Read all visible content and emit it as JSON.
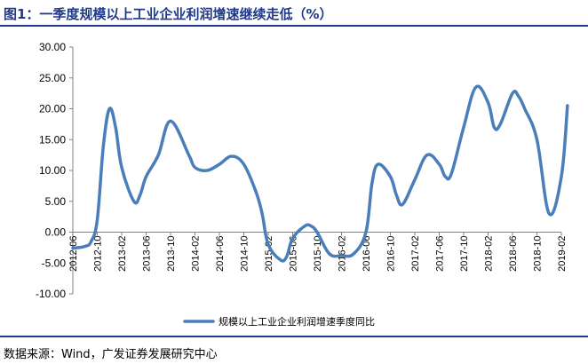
{
  "header": {
    "title": "图1：一季度规模以上工业企业利润增速继续走低（%）"
  },
  "footer": {
    "source": "数据来源：Wind，广发证券发展研究中心"
  },
  "chart_data": {
    "type": "line",
    "title": "图1：一季度规模以上工业企业利润增速继续走低（%）",
    "xlabel": "",
    "ylabel": "",
    "ylim": [
      -10,
      30
    ],
    "yticks": [
      "30.00",
      "25.00",
      "20.00",
      "15.00",
      "10.00",
      "5.00",
      "0.00",
      "-5.00",
      "-10.00"
    ],
    "categories": [
      "2012-06",
      "2012-10",
      "2013-02",
      "2013-06",
      "2013-10",
      "2014-02",
      "2014-06",
      "2014-10",
      "2015-02",
      "2015-06",
      "2015-10",
      "2016-02",
      "2016-06",
      "2016-10",
      "2017-02",
      "2017-06",
      "2017-10",
      "2018-02",
      "2018-06",
      "2018-10",
      "2019-02"
    ],
    "grid": false,
    "legend_position": "bottom",
    "series": [
      {
        "name": "规模以上工业企业利润增速季度同比",
        "color": "#4a7ebb",
        "x": [
          0,
          0.5,
          0.75,
          1.0,
          1.25,
          1.5,
          1.75,
          2.0,
          2.5,
          2.75,
          3.0,
          3.5,
          4.0,
          4.75,
          5.0,
          5.5,
          6.0,
          6.5,
          7.0,
          7.5,
          7.75,
          8.0,
          8.5,
          8.75,
          9.0,
          9.5,
          9.75,
          10.0,
          10.5,
          11.0,
          11.5,
          12.0,
          12.25,
          12.5,
          13.0,
          13.25,
          13.5,
          14.0,
          14.5,
          15.0,
          15.25,
          15.5,
          16.0,
          16.5,
          17.0,
          17.25,
          17.5,
          18.0,
          18.25,
          18.5,
          19.0,
          19.5,
          20.0,
          20.25
        ],
        "values": [
          -2.6,
          -2.3,
          -1.5,
          2.0,
          14.0,
          20.0,
          17.0,
          10.5,
          5.0,
          6.0,
          9.0,
          12.5,
          18.0,
          12.5,
          10.5,
          10.0,
          11.0,
          12.3,
          11.0,
          6.5,
          3.0,
          -2.0,
          -4.5,
          -4.0,
          -1.0,
          1.0,
          1.0,
          0.0,
          -3.5,
          -3.8,
          -3.5,
          0.0,
          8.0,
          11.0,
          9.0,
          6.0,
          4.5,
          8.5,
          12.5,
          11.0,
          9.0,
          9.5,
          17.0,
          23.5,
          21.0,
          17.0,
          17.5,
          22.5,
          22.0,
          20.0,
          15.0,
          3.0,
          9.0,
          20.5
        ]
      }
    ]
  }
}
